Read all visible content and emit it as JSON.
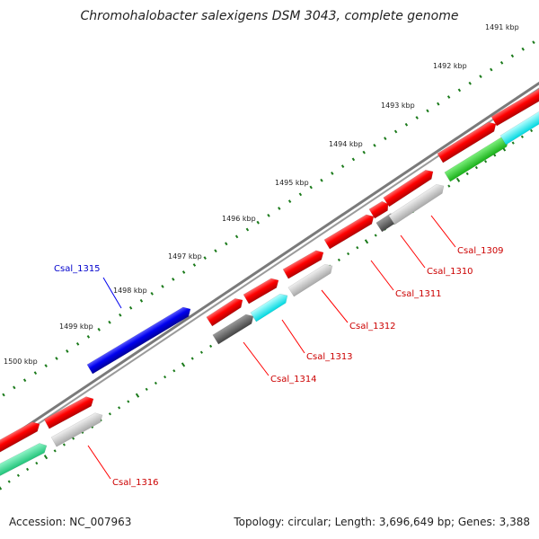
{
  "title": "Chromohalobacter salexigens DSM 3043, complete genome",
  "footer": {
    "accession": "Accession: NC_007963",
    "summary": "Topology: circular; Length: 3,696,649 bp; Genes: 3,388"
  },
  "colors": {
    "backbone": "#777777",
    "tick": "#1a7a1a",
    "cds_red": "#ff0000",
    "cds_blue": "#0000ee",
    "label_red": "#cc0000",
    "label_blue": "#0000cc"
  },
  "scale_labels": [
    "1491 kbp",
    "1492 kbp",
    "1493 kbp",
    "1494 kbp",
    "1495 kbp",
    "1496 kbp",
    "1497 kbp",
    "1498 kbp",
    "1499 kbp",
    "1500 kbp"
  ],
  "gene_labels": [
    {
      "text": "Csal_1309",
      "color": "red"
    },
    {
      "text": "Csal_1310",
      "color": "red"
    },
    {
      "text": "Csal_1311",
      "color": "red"
    },
    {
      "text": "Csal_1312",
      "color": "red"
    },
    {
      "text": "Csal_1313",
      "color": "red"
    },
    {
      "text": "Csal_1314",
      "color": "red"
    },
    {
      "text": "Csal_1315",
      "color": "blue"
    },
    {
      "text": "Csal_1316",
      "color": "red"
    }
  ]
}
